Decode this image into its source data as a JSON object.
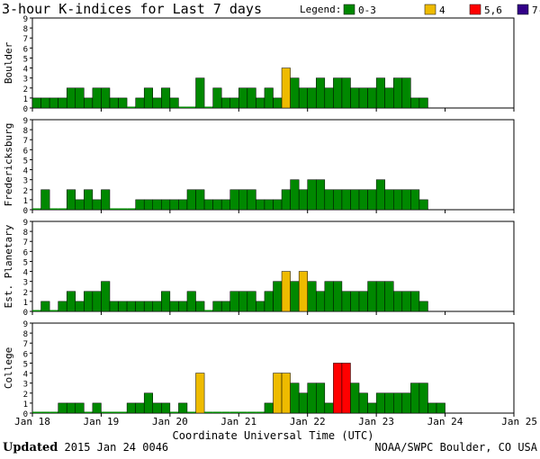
{
  "chart_data": {
    "type": "bar",
    "title": "3-hour K-indices for Last 7 days",
    "xlabel": "Coordinate Universal Time (UTC)",
    "x_tick_labels": [
      "Jan 18",
      "Jan 19",
      "Jan 20",
      "Jan 21",
      "Jan 22",
      "Jan 23",
      "Jan 24",
      "Jan 25"
    ],
    "y_ticks": [
      "0",
      "1",
      "2",
      "3",
      "4",
      "5",
      "6",
      "7",
      "8",
      "9"
    ],
    "ylim": [
      0,
      9
    ],
    "interval_hours": 3,
    "legend": {
      "label": "Legend:",
      "entries": [
        {
          "label": "0-3",
          "color": "#008800"
        },
        {
          "label": "4",
          "color": "#eebb00"
        },
        {
          "label": "5,6",
          "color": "#ff0000"
        },
        {
          "label": "7-9",
          "color": "#330088"
        }
      ]
    },
    "series": [
      {
        "name": "Boulder",
        "values": [
          1,
          1,
          1,
          1,
          2,
          2,
          1,
          2,
          2,
          1,
          1,
          0,
          1,
          2,
          1,
          2,
          1,
          0,
          0,
          3,
          0,
          2,
          1,
          1,
          2,
          2,
          1,
          2,
          1,
          4,
          3,
          2,
          2,
          3,
          2,
          3,
          3,
          2,
          2,
          2,
          3,
          2,
          3,
          3,
          1,
          1
        ]
      },
      {
        "name": "Fredericksburg",
        "values": [
          0,
          2,
          0,
          0,
          2,
          1,
          2,
          1,
          2,
          0,
          0,
          0,
          1,
          1,
          1,
          1,
          1,
          1,
          2,
          2,
          1,
          1,
          1,
          2,
          2,
          2,
          1,
          1,
          1,
          2,
          3,
          2,
          3,
          3,
          2,
          2,
          2,
          2,
          2,
          2,
          3,
          2,
          2,
          2,
          2,
          1
        ]
      },
      {
        "name": "Est. Planetary",
        "values": [
          0,
          1,
          0,
          1,
          2,
          1,
          2,
          2,
          3,
          1,
          1,
          1,
          1,
          1,
          1,
          2,
          1,
          1,
          2,
          1,
          0,
          1,
          1,
          2,
          2,
          2,
          1,
          2,
          3,
          4,
          3,
          4,
          3,
          2,
          3,
          3,
          2,
          2,
          2,
          3,
          3,
          3,
          2,
          2,
          2,
          1
        ]
      },
      {
        "name": "College",
        "values": [
          0,
          0,
          0,
          1,
          1,
          1,
          0,
          1,
          0,
          0,
          0,
          1,
          1,
          2,
          1,
          1,
          0,
          1,
          0,
          4,
          0,
          0,
          0,
          0,
          0,
          0,
          0,
          1,
          4,
          4,
          3,
          2,
          3,
          3,
          1,
          5,
          5,
          3,
          2,
          1,
          2,
          2,
          2,
          2,
          3,
          3,
          1,
          1
        ]
      }
    ]
  },
  "footer": {
    "updated_label": "Updated",
    "updated_value": "2015 Jan 24 0046",
    "credit": "NOAA/SWPC Boulder, CO USA"
  }
}
